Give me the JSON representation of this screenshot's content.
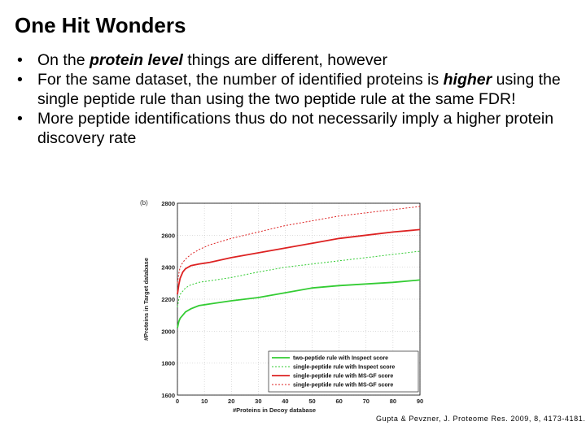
{
  "slide": {
    "title": "One Hit Wonders",
    "bullets": [
      {
        "parts": [
          {
            "text": "On the ",
            "emph": false
          },
          {
            "text": "protein level",
            "emph": true
          },
          {
            "text": " things are different, however",
            "emph": false
          }
        ]
      },
      {
        "parts": [
          {
            "text": "For the same dataset, the number of identified proteins is ",
            "emph": false
          },
          {
            "text": "higher",
            "emph": true
          },
          {
            "text": " using the single peptide rule than using the two peptide rule at the same FDR!",
            "emph": false
          }
        ]
      },
      {
        "parts": [
          {
            "text": "More peptide identifications thus do not necessarily imply a higher protein discovery rate",
            "emph": false
          }
        ]
      }
    ],
    "citation": "Gupta & Pevzner, J. Proteome Res. 2009, 8, 4173-4181."
  },
  "chart_data": {
    "type": "line",
    "panel_label": "(b)",
    "xlabel": "#Proteins in Decoy database",
    "ylabel": "#Proteins in Target database",
    "xlim": [
      0,
      90
    ],
    "ylim": [
      1600,
      2800
    ],
    "xticks": [
      0,
      10,
      20,
      30,
      40,
      50,
      60,
      70,
      80,
      90
    ],
    "yticks": [
      1600,
      1800,
      2000,
      2200,
      2400,
      2600,
      2800
    ],
    "grid": true,
    "legend_position": "bottom-right",
    "series": [
      {
        "name": "two-peptide rule with Inspect score",
        "color": "#33cc33",
        "dash": "solid",
        "x": [
          0,
          0.5,
          1,
          2,
          3,
          5,
          8,
          12,
          20,
          30,
          40,
          50,
          60,
          70,
          80,
          90
        ],
        "y": [
          2020,
          2060,
          2080,
          2100,
          2120,
          2140,
          2160,
          2170,
          2190,
          2210,
          2240,
          2270,
          2285,
          2295,
          2305,
          2320
        ]
      },
      {
        "name": "single-peptide rule with Inspect score",
        "color": "#33cc33",
        "dash": "dotted",
        "x": [
          0,
          0.5,
          1,
          2,
          3,
          5,
          8,
          12,
          20,
          30,
          40,
          50,
          60,
          70,
          80,
          90
        ],
        "y": [
          2150,
          2200,
          2230,
          2250,
          2270,
          2290,
          2305,
          2315,
          2335,
          2370,
          2400,
          2420,
          2440,
          2460,
          2480,
          2500
        ]
      },
      {
        "name": "single-peptide rule with MS-GF score",
        "color": "#dd2222",
        "dash": "solid",
        "x": [
          0,
          0.5,
          1,
          2,
          3,
          5,
          8,
          12,
          20,
          30,
          40,
          50,
          60,
          70,
          80,
          90
        ],
        "y": [
          2230,
          2290,
          2330,
          2370,
          2390,
          2410,
          2420,
          2430,
          2460,
          2490,
          2520,
          2550,
          2580,
          2600,
          2620,
          2635
        ]
      },
      {
        "name": "single-peptide rule with MS-GF score",
        "color": "#dd2222",
        "dash": "dotted",
        "x": [
          0,
          0.5,
          1,
          2,
          3,
          5,
          8,
          12,
          20,
          30,
          40,
          50,
          60,
          70,
          80,
          90
        ],
        "y": [
          2300,
          2360,
          2400,
          2430,
          2450,
          2480,
          2510,
          2540,
          2580,
          2620,
          2660,
          2690,
          2720,
          2740,
          2760,
          2780
        ]
      }
    ]
  }
}
